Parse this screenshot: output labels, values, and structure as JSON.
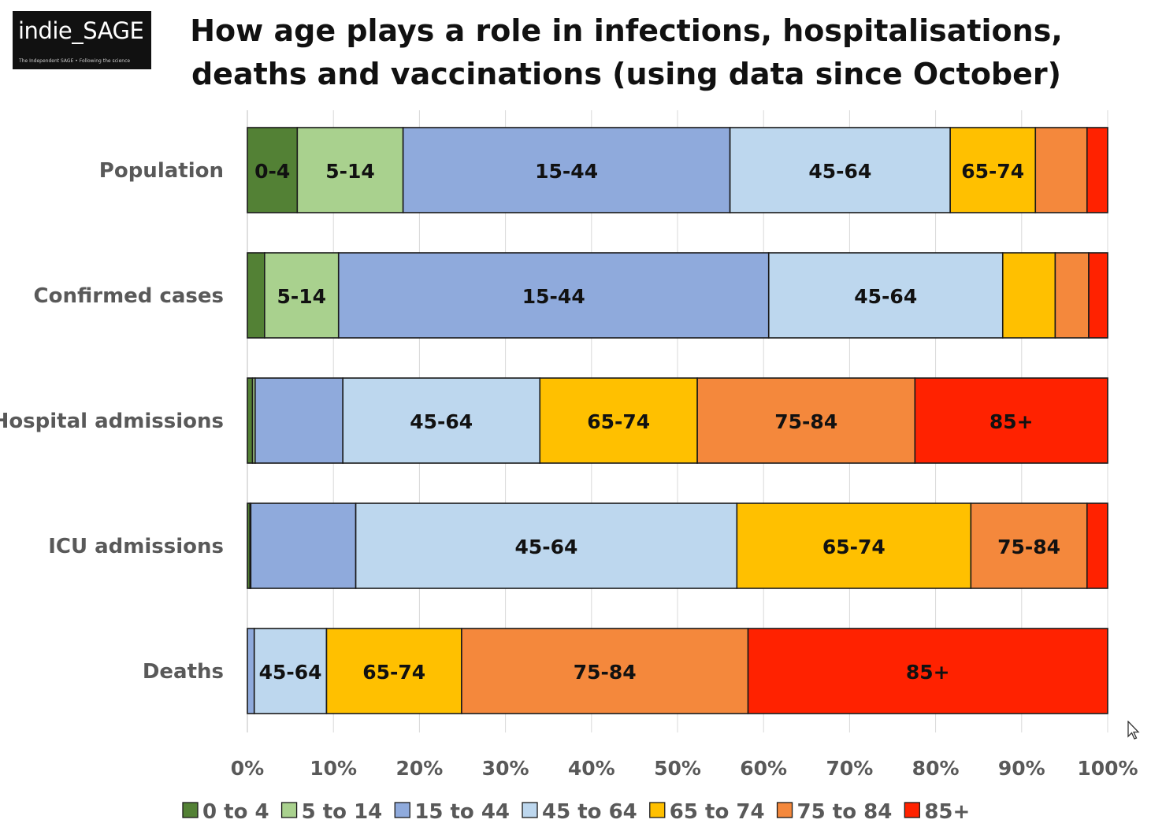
{
  "logo": {
    "text": "indie_SAGE",
    "tagline": "The Independent SAGE • Following the science"
  },
  "chart_data": {
    "type": "bar",
    "orientation": "horizontal",
    "stacked": "percent",
    "title": "How age plays a role in infections, hospitalisations, deaths and vaccinations (using data since October)",
    "categories": [
      "Population",
      "Confirmed cases",
      "Hospital admissions",
      "ICU admissions",
      "Deaths"
    ],
    "series": [
      {
        "name": "0 to 4",
        "short": "0-4",
        "color": "#538135",
        "values": [
          5.8,
          2.0,
          0.6,
          0.3,
          0.0
        ]
      },
      {
        "name": "5 to 14",
        "short": "5-14",
        "color": "#A9D18E",
        "values": [
          12.3,
          8.6,
          0.3,
          0.1,
          0.0
        ]
      },
      {
        "name": "15 to 44",
        "short": "15-44",
        "color": "#8FAADC",
        "values": [
          38.0,
          50.0,
          10.2,
          12.2,
          0.8
        ]
      },
      {
        "name": "45 to 64",
        "short": "45-64",
        "color": "#BDD7EE",
        "values": [
          25.6,
          27.2,
          22.9,
          44.3,
          8.4
        ]
      },
      {
        "name": "65 to 74",
        "short": "65-74",
        "color": "#FFC000",
        "values": [
          9.9,
          6.1,
          18.3,
          27.2,
          15.7
        ]
      },
      {
        "name": "75 to 84",
        "short": "75-84",
        "color": "#F4883C",
        "values": [
          6.0,
          3.9,
          25.3,
          13.5,
          33.3
        ]
      },
      {
        "name": "85+",
        "short": "85+",
        "color": "#FF2200",
        "values": [
          2.4,
          2.2,
          22.4,
          2.4,
          41.8
        ]
      }
    ],
    "visible_labels": [
      [
        "0-4",
        "5-14",
        "15-44",
        "45-64",
        "65-74",
        null,
        null
      ],
      [
        null,
        "5-14",
        "15-44",
        "45-64",
        null,
        null,
        null
      ],
      [
        null,
        null,
        null,
        "45-64",
        "65-74",
        "75-84",
        "85+"
      ],
      [
        null,
        null,
        null,
        "45-64",
        "65-74",
        "75-84",
        null
      ],
      [
        null,
        null,
        null,
        "45-64",
        "65-74",
        "75-84",
        "85+"
      ]
    ],
    "x_ticks": [
      "0%",
      "10%",
      "20%",
      "30%",
      "40%",
      "50%",
      "60%",
      "70%",
      "80%",
      "90%",
      "100%"
    ],
    "xlim": [
      0,
      100
    ],
    "grid": "vertical",
    "legend": "bottom"
  }
}
